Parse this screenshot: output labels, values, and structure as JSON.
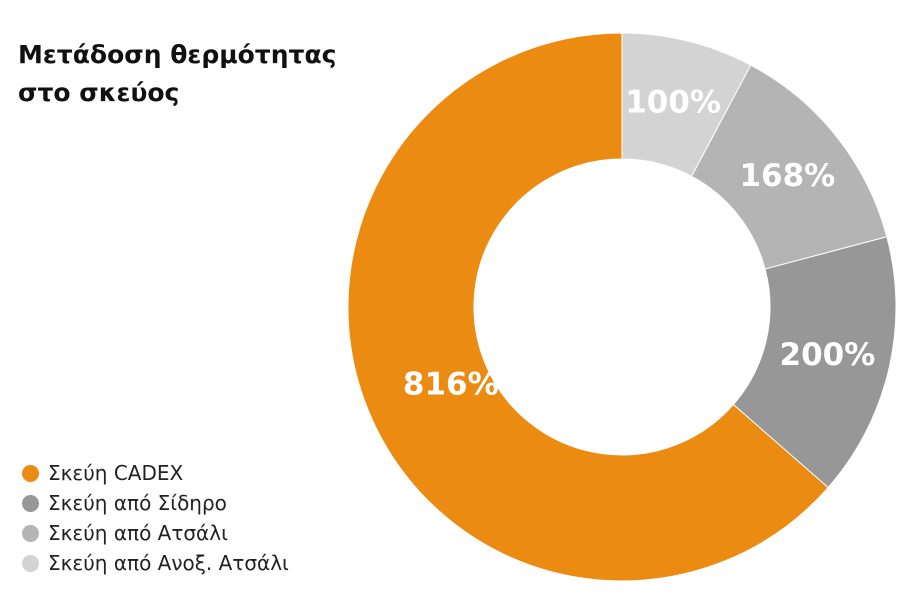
{
  "title_lines": [
    "Μετάδοση θερμότητας",
    "στο σκεύος"
  ],
  "chart_data": {
    "type": "pie",
    "donut": true,
    "start_angle_deg": 0,
    "direction": "clockwise",
    "slices": [
      {
        "label": "Σκεύη από Ανοξ. Ατσάλι",
        "value": 100,
        "display": "100%",
        "color": "#d3d3d3"
      },
      {
        "label": "Σκεύη από Ατσάλι",
        "value": 168,
        "display": "168%",
        "color": "#b4b4b4"
      },
      {
        "label": "Σκεύη από Σίδηρο",
        "value": 200,
        "display": "200%",
        "color": "#979797"
      },
      {
        "label": "Σκεύη CADEX",
        "value": 816,
        "display": "816%",
        "color": "#ec8b12"
      }
    ],
    "legend": [
      {
        "label": "Σκεύη CADEX",
        "color": "#ec8b12"
      },
      {
        "label": "Σκεύη από Σίδηρο",
        "color": "#979797"
      },
      {
        "label": "Σκεύη από Ατσάλι",
        "color": "#b4b4b4"
      },
      {
        "label": "Σκεύη από Ανοξ. Ατσάλι",
        "color": "#d3d3d3"
      }
    ],
    "legend_position": "bottom-left"
  }
}
